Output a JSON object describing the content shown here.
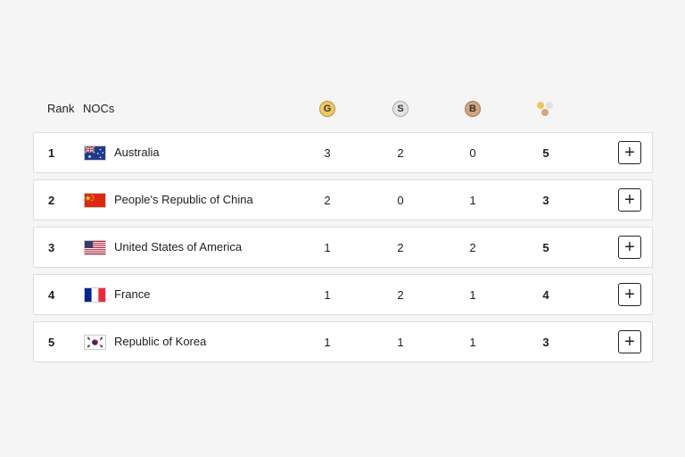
{
  "header": {
    "rank_label": "Rank",
    "noc_label": "NOCs",
    "gold_label": "G",
    "silver_label": "S",
    "bronze_label": "B",
    "total_icon": "total-medals-icon"
  },
  "colors": {
    "gold": "#f2c75c",
    "silver": "#e3e3e3",
    "bronze": "#d4a57c"
  },
  "rows": [
    {
      "rank": "1",
      "flag": "australia-flag-icon",
      "name": "Australia",
      "gold": "3",
      "silver": "2",
      "bronze": "0",
      "total": "5"
    },
    {
      "rank": "2",
      "flag": "china-flag-icon",
      "name": "People's Republic of China",
      "gold": "2",
      "silver": "0",
      "bronze": "1",
      "total": "3"
    },
    {
      "rank": "3",
      "flag": "usa-flag-icon",
      "name": "United States of America",
      "gold": "1",
      "silver": "2",
      "bronze": "2",
      "total": "5"
    },
    {
      "rank": "4",
      "flag": "france-flag-icon",
      "name": "France",
      "gold": "1",
      "silver": "2",
      "bronze": "1",
      "total": "4"
    },
    {
      "rank": "5",
      "flag": "korea-flag-icon",
      "name": "Republic of Korea",
      "gold": "1",
      "silver": "1",
      "bronze": "1",
      "total": "3"
    }
  ],
  "expand_icon": "plus-icon"
}
